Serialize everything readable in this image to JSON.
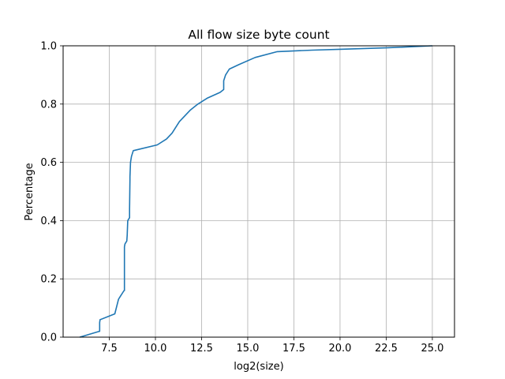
{
  "chart_data": {
    "type": "line",
    "title": "All flow size byte count",
    "xlabel": "log2(size)",
    "ylabel": "Percentage",
    "xlim": [
      5.0,
      26.2
    ],
    "ylim": [
      0.0,
      1.0
    ],
    "grid": true,
    "x_ticks": [
      7.5,
      10.0,
      12.5,
      15.0,
      17.5,
      20.0,
      22.5,
      25.0
    ],
    "x_tick_labels": [
      "7.5",
      "10.0",
      "12.5",
      "15.0",
      "17.5",
      "20.0",
      "22.5",
      "25.0"
    ],
    "y_ticks": [
      0.0,
      0.2,
      0.4,
      0.6,
      0.8,
      1.0
    ],
    "y_tick_labels": [
      "0.0",
      "0.2",
      "0.4",
      "0.6",
      "0.8",
      "1.0"
    ],
    "series": [
      {
        "name": "cdf",
        "color": "#1f77b4",
        "x": [
          5.9,
          6.96,
          6.98,
          6.98,
          7.0,
          7.8,
          8.0,
          8.1,
          8.3,
          8.32,
          8.32,
          8.35,
          8.45,
          8.47,
          8.5,
          8.6,
          8.6,
          8.62,
          8.62,
          8.65,
          8.7,
          8.8,
          10.1,
          10.6,
          10.9,
          11.1,
          11.3,
          11.9,
          12.3,
          12.8,
          13.5,
          13.7,
          13.7,
          13.8,
          14.0,
          14.5,
          15.4,
          16.6,
          18.5,
          20.0,
          22.5,
          25.0
        ],
        "y": [
          0.0,
          0.02,
          0.02,
          0.05,
          0.06,
          0.08,
          0.13,
          0.14,
          0.16,
          0.16,
          0.31,
          0.32,
          0.33,
          0.35,
          0.4,
          0.41,
          0.44,
          0.54,
          0.55,
          0.6,
          0.62,
          0.64,
          0.66,
          0.68,
          0.7,
          0.72,
          0.74,
          0.78,
          0.8,
          0.82,
          0.84,
          0.85,
          0.88,
          0.9,
          0.92,
          0.935,
          0.96,
          0.98,
          0.985,
          0.988,
          0.993,
          1.0
        ]
      }
    ]
  }
}
